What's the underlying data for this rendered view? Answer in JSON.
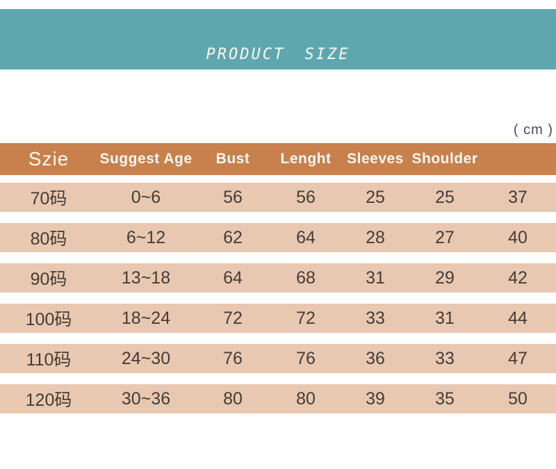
{
  "banner": {
    "title": "PRODUCT SIZE"
  },
  "unit_label": "( cm )",
  "colors": {
    "teal": "#5fa7af",
    "orange": "#c8804c",
    "row-bg": "#e9c8b1",
    "header-text": "#fdf8f2",
    "row-text": "#453c36",
    "unit-text": "#4b4b4b"
  },
  "chart_data": {
    "type": "table",
    "title": "PRODUCT SIZE",
    "unit": "cm",
    "columns": [
      "Szie",
      "Suggest Age",
      "Bust",
      "Lenght",
      "Sleeves",
      "Shoulder",
      ""
    ],
    "rows": [
      [
        "70码",
        "0~6",
        "56",
        "56",
        "25",
        "25",
        "37"
      ],
      [
        "80码",
        "6~12",
        "62",
        "64",
        "28",
        "27",
        "40"
      ],
      [
        "90码",
        "13~18",
        "64",
        "68",
        "31",
        "29",
        "42"
      ],
      [
        "100码",
        "18~24",
        "72",
        "72",
        "33",
        "31",
        "44"
      ],
      [
        "110码",
        "24~30",
        "76",
        "76",
        "36",
        "33",
        "47"
      ],
      [
        "120码",
        "30~36",
        "80",
        "80",
        "39",
        "35",
        "50"
      ]
    ]
  }
}
